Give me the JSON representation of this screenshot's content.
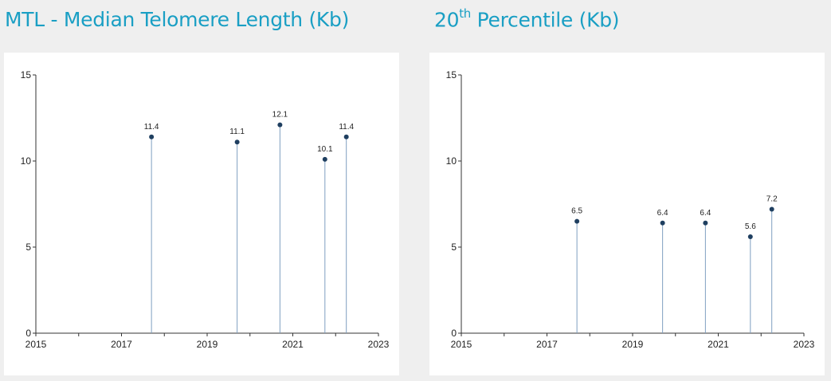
{
  "header": {
    "left_title": "MTL - Median Telomere Length (Kb)",
    "right_title_prefix": "20",
    "right_title_sup": "th",
    "right_title_suffix": " Percentile (Kb)"
  },
  "colors": {
    "title": "#1a9fc4",
    "marker": "#1f3f60",
    "stem": "#7f9fc0",
    "axis": "#333333"
  },
  "chart_data": [
    {
      "type": "scatter",
      "style": "lollipop",
      "title": "MTL - Median Telomere Length (Kb)",
      "xlabel": "",
      "ylabel": "",
      "xlim": [
        2015,
        2023
      ],
      "ylim": [
        0,
        15
      ],
      "xticks": [
        "2015",
        "2017",
        "2019",
        "2021",
        "2023"
      ],
      "yticks": [
        "0",
        "5",
        "10",
        "15"
      ],
      "grid": false,
      "points": [
        {
          "x": 2017.7,
          "y": 11.4,
          "label": "11.4"
        },
        {
          "x": 2019.7,
          "y": 11.1,
          "label": "11.1"
        },
        {
          "x": 2020.7,
          "y": 12.1,
          "label": "12.1"
        },
        {
          "x": 2021.75,
          "y": 10.1,
          "label": "10.1"
        },
        {
          "x": 2022.25,
          "y": 11.4,
          "label": "11.4"
        }
      ]
    },
    {
      "type": "scatter",
      "style": "lollipop",
      "title": "20th Percentile (Kb)",
      "xlabel": "",
      "ylabel": "",
      "xlim": [
        2015,
        2023
      ],
      "ylim": [
        0,
        15
      ],
      "xticks": [
        "2015",
        "2017",
        "2019",
        "2021",
        "2023"
      ],
      "yticks": [
        "0",
        "5",
        "10",
        "15"
      ],
      "grid": false,
      "points": [
        {
          "x": 2017.7,
          "y": 6.5,
          "label": "6.5"
        },
        {
          "x": 2019.7,
          "y": 6.4,
          "label": "6.4"
        },
        {
          "x": 2020.7,
          "y": 6.4,
          "label": "6.4"
        },
        {
          "x": 2021.75,
          "y": 5.6,
          "label": "5.6"
        },
        {
          "x": 2022.25,
          "y": 7.2,
          "label": "7.2"
        }
      ]
    }
  ]
}
